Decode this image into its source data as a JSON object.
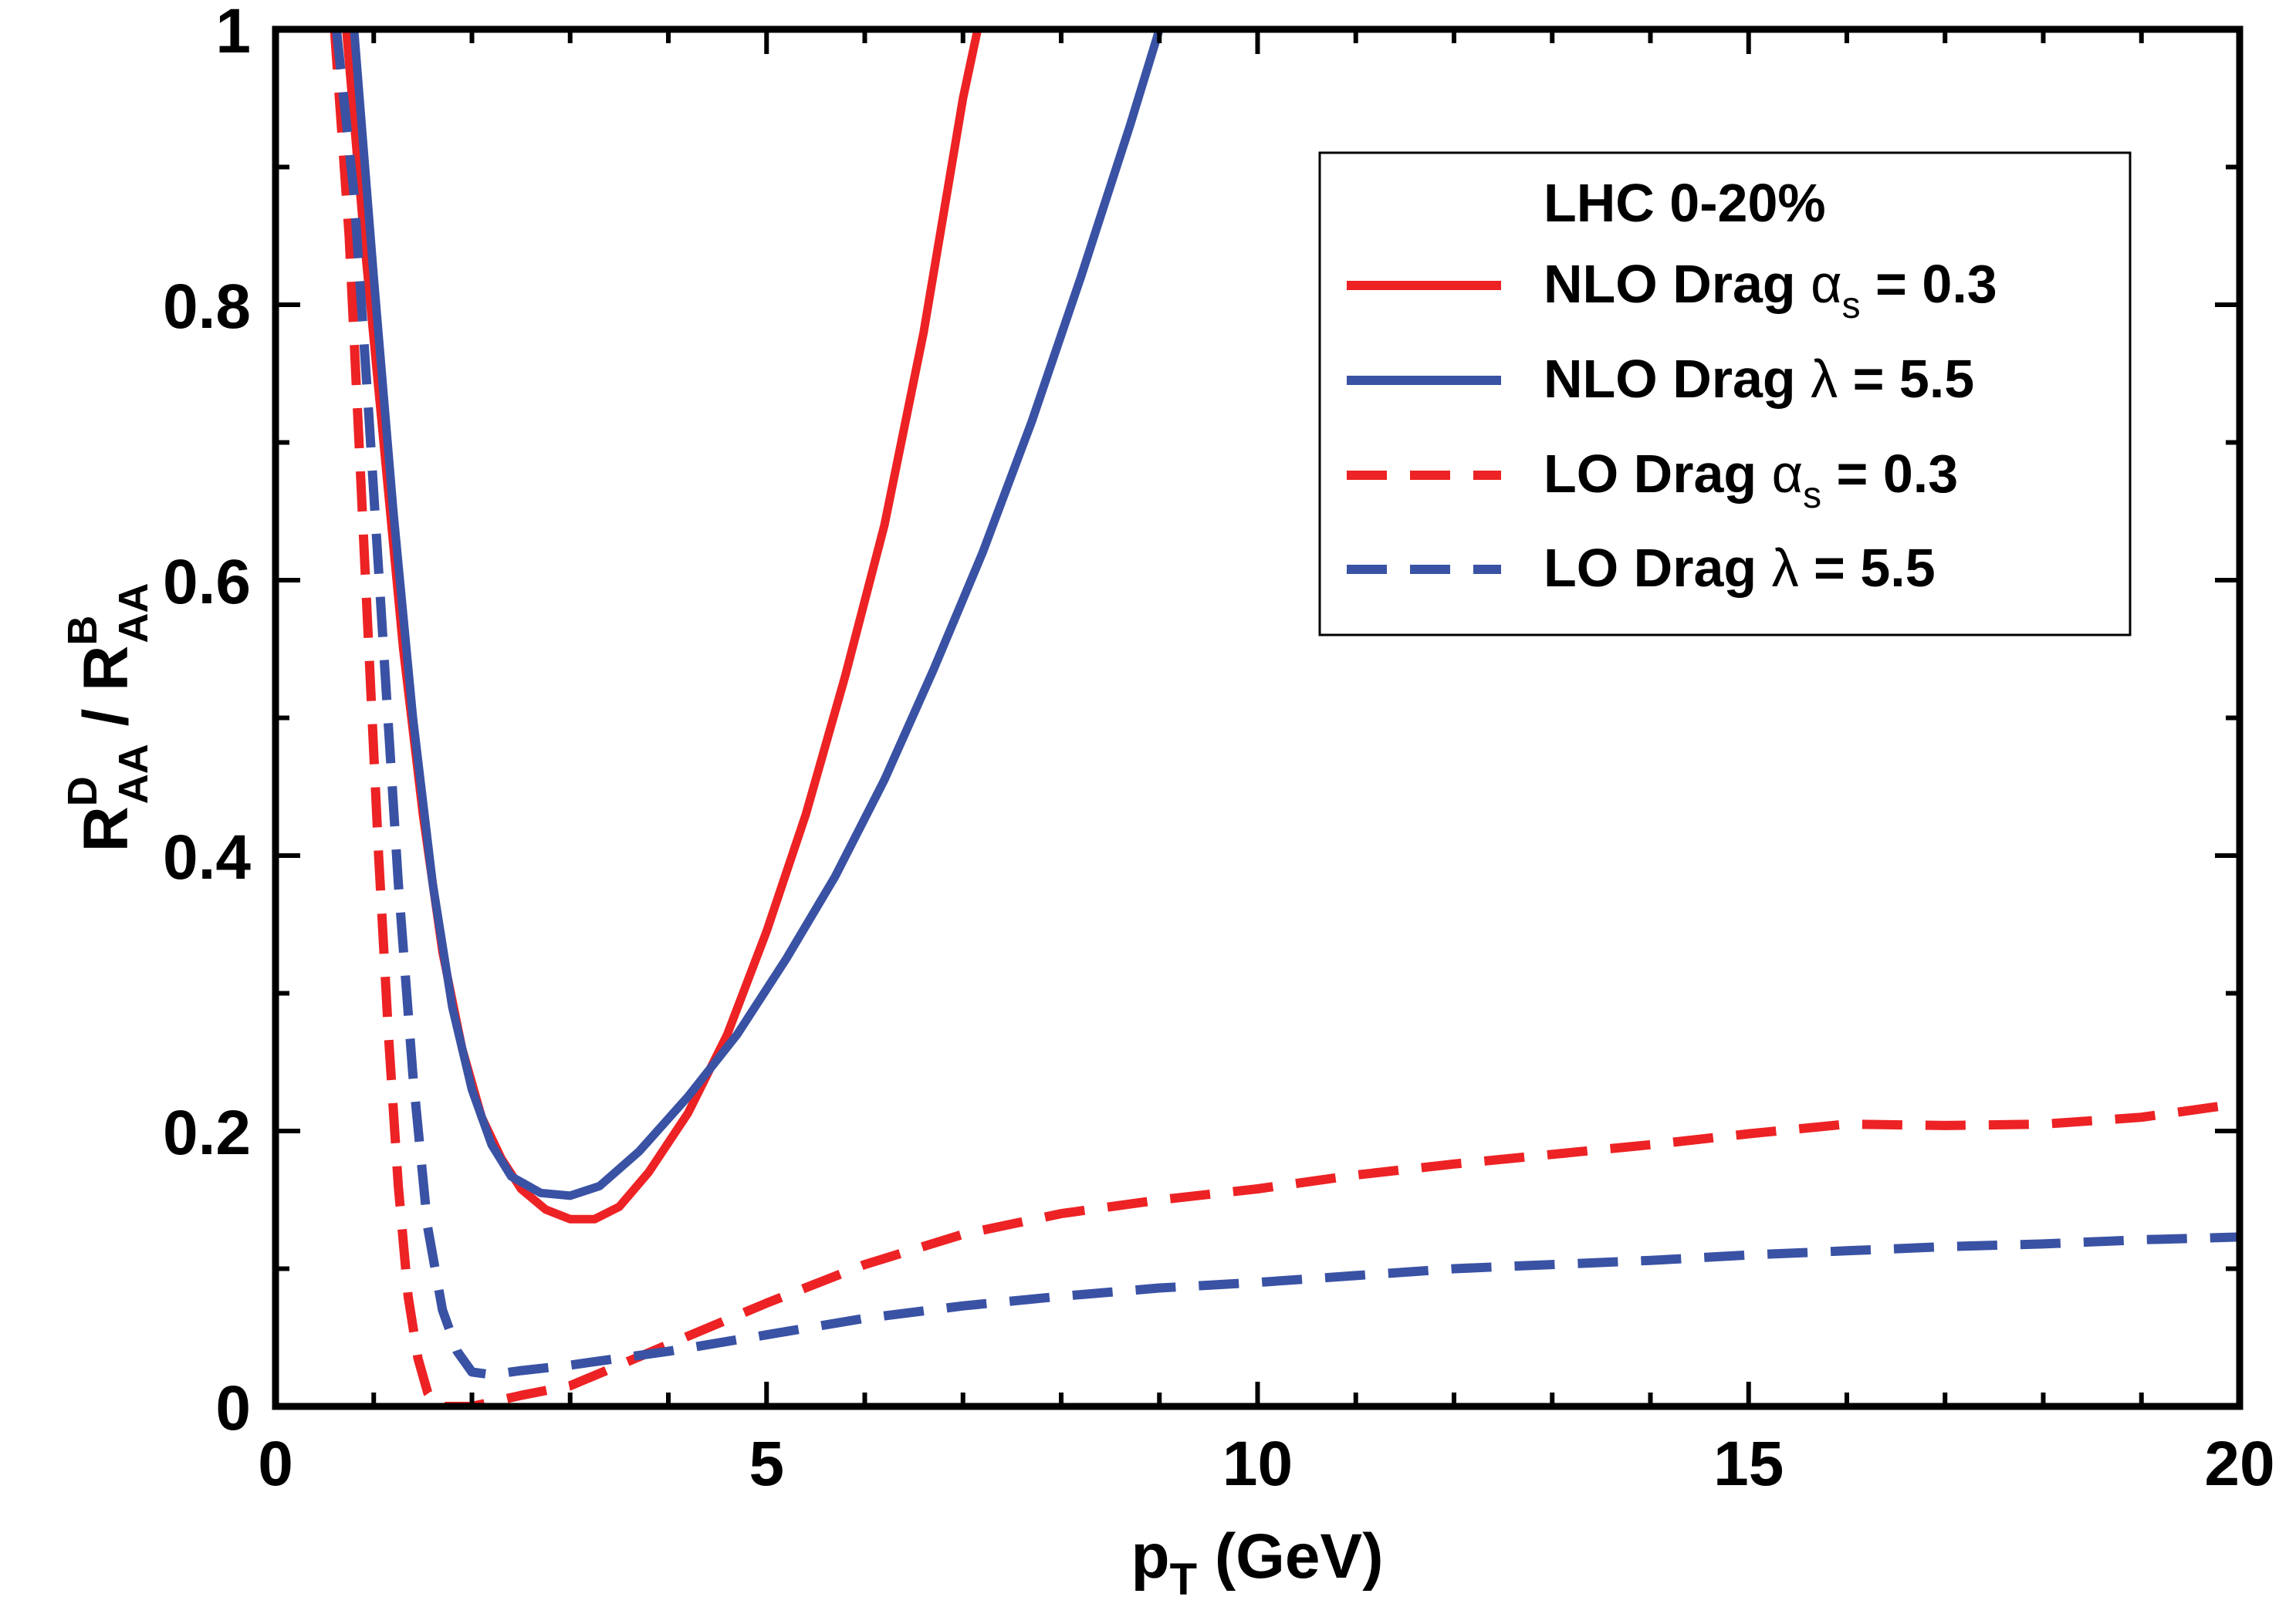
{
  "chart_data": {
    "type": "line",
    "title": "",
    "xlabel": "p",
    "xlabel_sub": "T",
    "xlabel_unit": "(GeV)",
    "ylabel": {
      "num_base": "R",
      "num_sup": "D",
      "num_sub": "AA",
      "sep": "/",
      "den_base": "R",
      "den_sup": "B",
      "den_sub": "AA"
    },
    "xlim": [
      0,
      20
    ],
    "ylim": [
      0,
      1
    ],
    "xticks": [
      {
        "value": 0,
        "label": "0"
      },
      {
        "value": 5,
        "label": "5"
      },
      {
        "value": 10,
        "label": "10"
      },
      {
        "value": 15,
        "label": "15"
      },
      {
        "value": 20,
        "label": "20"
      }
    ],
    "yticks": [
      {
        "value": 0,
        "label": "0"
      },
      {
        "value": 0.2,
        "label": "0.2"
      },
      {
        "value": 0.4,
        "label": "0.4"
      },
      {
        "value": 0.6,
        "label": "0.6"
      },
      {
        "value": 0.8,
        "label": "0.8"
      },
      {
        "value": 1,
        "label": "1"
      }
    ],
    "x_minor_step": 1,
    "y_minor_step": 0.1,
    "grid": false,
    "legend": {
      "placement": "top-right",
      "title": "LHC 0-20%"
    },
    "series": [
      {
        "label_prefix": "NLO Drag ",
        "label_symbol": "α",
        "label_symbol_sub": "s",
        "label_suffix": " = 0.3",
        "color": "#ed2224",
        "dash": "solid",
        "points": [
          [
            0.72,
            1.0
          ],
          [
            0.9,
            0.85
          ],
          [
            1.1,
            0.7
          ],
          [
            1.3,
            0.55
          ],
          [
            1.5,
            0.43
          ],
          [
            1.7,
            0.33
          ],
          [
            1.9,
            0.26
          ],
          [
            2.1,
            0.21
          ],
          [
            2.3,
            0.18
          ],
          [
            2.5,
            0.158
          ],
          [
            2.75,
            0.143
          ],
          [
            3.0,
            0.136
          ],
          [
            3.25,
            0.136
          ],
          [
            3.5,
            0.145
          ],
          [
            3.8,
            0.17
          ],
          [
            4.2,
            0.213
          ],
          [
            4.6,
            0.27
          ],
          [
            5.0,
            0.345
          ],
          [
            5.4,
            0.43
          ],
          [
            5.8,
            0.53
          ],
          [
            6.2,
            0.64
          ],
          [
            6.6,
            0.78
          ],
          [
            7.0,
            0.95
          ],
          [
            7.15,
            1.0
          ]
        ]
      },
      {
        "label_prefix": "NLO Drag ",
        "label_symbol": "λ",
        "label_symbol_sub": "",
        "label_suffix": " = 5.5",
        "color": "#3a52a4",
        "dash": "solid",
        "points": [
          [
            0.8,
            1.0
          ],
          [
            1.0,
            0.82
          ],
          [
            1.2,
            0.65
          ],
          [
            1.4,
            0.5
          ],
          [
            1.6,
            0.38
          ],
          [
            1.8,
            0.29
          ],
          [
            2.0,
            0.23
          ],
          [
            2.2,
            0.19
          ],
          [
            2.4,
            0.167
          ],
          [
            2.7,
            0.155
          ],
          [
            3.0,
            0.153
          ],
          [
            3.3,
            0.16
          ],
          [
            3.7,
            0.185
          ],
          [
            4.2,
            0.225
          ],
          [
            4.7,
            0.27
          ],
          [
            5.2,
            0.325
          ],
          [
            5.7,
            0.385
          ],
          [
            6.2,
            0.455
          ],
          [
            6.7,
            0.535
          ],
          [
            7.2,
            0.62
          ],
          [
            7.7,
            0.715
          ],
          [
            8.2,
            0.82
          ],
          [
            8.7,
            0.93
          ],
          [
            9.0,
            1.0
          ]
        ]
      },
      {
        "label_prefix": "LO Drag ",
        "label_symbol": "α",
        "label_symbol_sub": "s",
        "label_suffix": " = 0.3",
        "color": "#ed2224",
        "dash": "dashed",
        "points": [
          [
            0.6,
            1.0
          ],
          [
            0.75,
            0.85
          ],
          [
            0.85,
            0.7
          ],
          [
            0.95,
            0.55
          ],
          [
            1.05,
            0.4
          ],
          [
            1.15,
            0.27
          ],
          [
            1.25,
            0.16
          ],
          [
            1.35,
            0.08
          ],
          [
            1.45,
            0.035
          ],
          [
            1.55,
            0.01
          ],
          [
            1.65,
            0.0
          ],
          [
            2.0,
            0.0
          ],
          [
            2.5,
            0.008
          ],
          [
            3.0,
            0.015
          ],
          [
            3.5,
            0.03
          ],
          [
            4.0,
            0.045
          ],
          [
            5.0,
            0.075
          ],
          [
            6.0,
            0.103
          ],
          [
            7.0,
            0.125
          ],
          [
            8.0,
            0.14
          ],
          [
            9.0,
            0.15
          ],
          [
            10.0,
            0.158
          ],
          [
            11.0,
            0.168
          ],
          [
            12.0,
            0.176
          ],
          [
            13.0,
            0.183
          ],
          [
            14.0,
            0.19
          ],
          [
            15.0,
            0.198
          ],
          [
            16.0,
            0.205
          ],
          [
            17.0,
            0.204
          ],
          [
            18.0,
            0.205
          ],
          [
            19.0,
            0.21
          ],
          [
            20.0,
            0.22
          ]
        ]
      },
      {
        "label_prefix": "LO Drag ",
        "label_symbol": "λ",
        "label_symbol_sub": "",
        "label_suffix": " = 5.5",
        "color": "#3a52a4",
        "dash": "dashed",
        "points": [
          [
            0.62,
            1.0
          ],
          [
            0.8,
            0.88
          ],
          [
            0.95,
            0.72
          ],
          [
            1.1,
            0.55
          ],
          [
            1.25,
            0.38
          ],
          [
            1.4,
            0.24
          ],
          [
            1.55,
            0.13
          ],
          [
            1.7,
            0.07
          ],
          [
            1.85,
            0.04
          ],
          [
            2.0,
            0.025
          ],
          [
            2.2,
            0.023
          ],
          [
            2.5,
            0.026
          ],
          [
            3.0,
            0.03
          ],
          [
            3.5,
            0.035
          ],
          [
            4.0,
            0.04
          ],
          [
            5.0,
            0.052
          ],
          [
            6.0,
            0.064
          ],
          [
            7.0,
            0.073
          ],
          [
            8.0,
            0.08
          ],
          [
            9.0,
            0.086
          ],
          [
            10.0,
            0.09
          ],
          [
            11.0,
            0.095
          ],
          [
            12.0,
            0.1
          ],
          [
            13.0,
            0.103
          ],
          [
            14.0,
            0.106
          ],
          [
            15.0,
            0.11
          ],
          [
            16.0,
            0.113
          ],
          [
            17.0,
            0.116
          ],
          [
            18.0,
            0.118
          ],
          [
            19.0,
            0.121
          ],
          [
            20.0,
            0.123
          ]
        ]
      }
    ]
  }
}
